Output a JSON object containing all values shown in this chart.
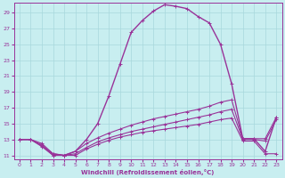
{
  "bg_color": "#c8eef0",
  "line_color": "#993399",
  "grid_color": "#a8d8dc",
  "xlabel": "Windchill (Refroidissement éolien,°C)",
  "xlim": [
    -0.5,
    23.5
  ],
  "ylim": [
    10.5,
    30.2
  ],
  "xticks": [
    0,
    1,
    2,
    3,
    4,
    5,
    6,
    7,
    8,
    9,
    10,
    11,
    12,
    13,
    14,
    15,
    16,
    17,
    18,
    19,
    20,
    21,
    22,
    23
  ],
  "yticks": [
    11,
    13,
    15,
    17,
    19,
    21,
    23,
    25,
    27,
    29
  ],
  "curve1_x": [
    0,
    1,
    2,
    3,
    4,
    5,
    6,
    7,
    8,
    9,
    10,
    11,
    12,
    13,
    14,
    15,
    16,
    17,
    18,
    19,
    20,
    21,
    22,
    23
  ],
  "curve1_y": [
    13.0,
    13.0,
    12.2,
    11.2,
    11.0,
    11.5,
    13.0,
    15.0,
    18.5,
    22.5,
    26.5,
    28.0,
    29.2,
    30.0,
    29.8,
    29.5,
    28.5,
    27.7,
    25.0,
    20.0,
    13.1,
    13.1,
    11.5,
    15.8
  ],
  "curve2_x": [
    0,
    1,
    2,
    3,
    4,
    5,
    6,
    7,
    8,
    9,
    10,
    11,
    12,
    13,
    14,
    15,
    16,
    17,
    18,
    19,
    20,
    21,
    22,
    23
  ],
  "curve2_y": [
    13.0,
    13.0,
    12.5,
    11.2,
    11.0,
    11.5,
    12.5,
    13.2,
    13.8,
    14.3,
    14.8,
    15.2,
    15.6,
    15.9,
    16.2,
    16.5,
    16.8,
    17.2,
    17.7,
    18.0,
    13.1,
    13.1,
    13.1,
    15.8
  ],
  "curve3_x": [
    0,
    1,
    2,
    3,
    4,
    5,
    6,
    7,
    8,
    9,
    10,
    11,
    12,
    13,
    14,
    15,
    16,
    17,
    18,
    19,
    20,
    21,
    22,
    23
  ],
  "curve3_y": [
    13.0,
    13.0,
    12.3,
    11.0,
    11.0,
    11.2,
    12.0,
    12.7,
    13.2,
    13.6,
    14.0,
    14.3,
    14.6,
    14.9,
    15.2,
    15.5,
    15.8,
    16.1,
    16.5,
    16.8,
    13.0,
    13.0,
    12.8,
    15.5
  ],
  "curve4_x": [
    0,
    1,
    2,
    3,
    4,
    5,
    6,
    7,
    8,
    9,
    10,
    11,
    12,
    13,
    14,
    15,
    16,
    17,
    18,
    19,
    20,
    21,
    22,
    23
  ],
  "curve4_y": [
    13.0,
    13.0,
    12.1,
    11.0,
    11.0,
    11.0,
    11.8,
    12.4,
    12.9,
    13.3,
    13.6,
    13.9,
    14.1,
    14.3,
    14.5,
    14.7,
    14.9,
    15.2,
    15.5,
    15.7,
    12.8,
    12.8,
    11.2,
    11.2
  ]
}
